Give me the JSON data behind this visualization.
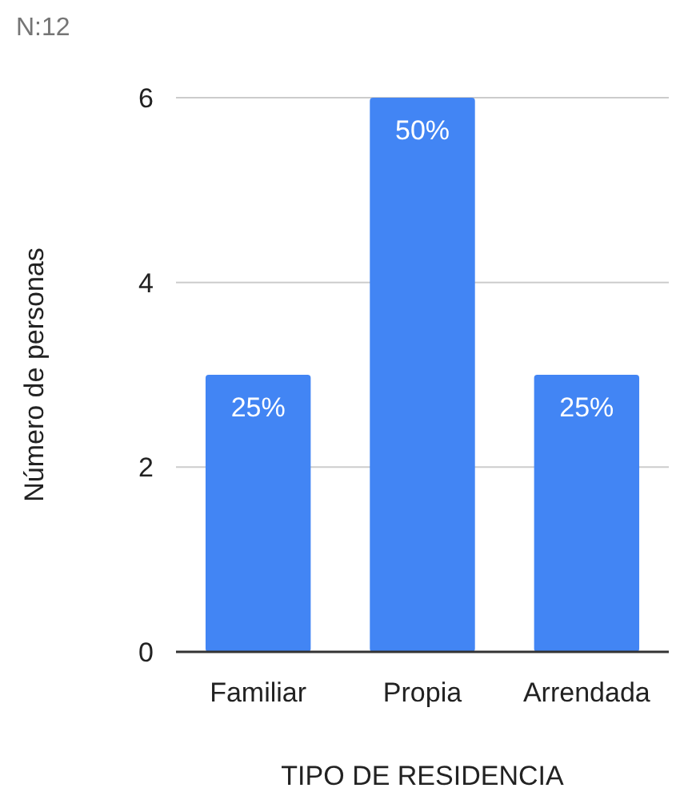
{
  "chart_data": {
    "type": "bar",
    "title": "N:12",
    "xlabel": "TIPO DE RESIDENCIA",
    "ylabel": "Número de personas",
    "categories": [
      "Familiar",
      "Propia",
      "Arrendada"
    ],
    "values": [
      3,
      6,
      3
    ],
    "annotations": [
      {
        "text": "25%",
        "x": "Familiar",
        "y": 3
      },
      {
        "text": "50%",
        "x": "Propia",
        "y": 6
      },
      {
        "text": "25%",
        "x": "Arrendada",
        "y": 3
      }
    ],
    "color": "#4285f4",
    "ylim": [
      0,
      6
    ],
    "yticks": [
      0,
      2,
      4,
      6
    ],
    "grid": "y"
  }
}
